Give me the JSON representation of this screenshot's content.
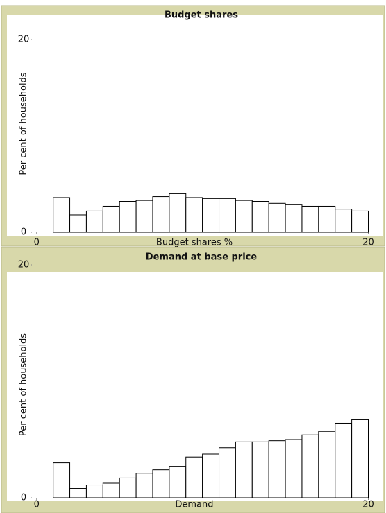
{
  "chart_data": [
    {
      "type": "histogram",
      "title": "Budget shares",
      "xlabel": "Budget shares %",
      "ylabel": "Per cent of households",
      "bins": [
        1,
        2,
        3,
        4,
        5,
        6,
        7,
        8,
        9,
        10,
        11,
        12,
        13,
        14,
        15,
        16,
        17,
        18,
        19,
        20
      ],
      "values": [
        3.6,
        1.8,
        2.2,
        2.7,
        3.2,
        3.3,
        3.7,
        4.0,
        3.6,
        3.5,
        3.5,
        3.3,
        3.2,
        3.0,
        2.9,
        2.7,
        2.7,
        2.4,
        2.2
      ],
      "xlim": [
        -0.2,
        20.9
      ],
      "ylim": [
        0,
        20
      ],
      "xticks": [
        0,
        20
      ],
      "yticks": [
        0,
        20
      ]
    },
    {
      "type": "histogram",
      "title": "Demand at base price",
      "xlabel": "Demand",
      "ylabel": "Per cent of households",
      "bins": [
        1,
        2,
        3,
        4,
        5,
        6,
        7,
        8,
        9,
        10,
        11,
        12,
        13,
        14,
        15,
        16,
        17,
        18,
        19,
        20
      ],
      "values": [
        3.0,
        0.8,
        1.1,
        1.25,
        1.7,
        2.1,
        2.4,
        2.7,
        3.5,
        3.75,
        4.3,
        4.8,
        4.8,
        4.9,
        5.0,
        5.4,
        5.7,
        6.4,
        6.7
      ],
      "xlim": [
        -0.2,
        20.9
      ],
      "ylim": [
        0,
        20
      ],
      "xticks": [
        0,
        20
      ],
      "yticks": [
        0,
        20
      ]
    }
  ]
}
